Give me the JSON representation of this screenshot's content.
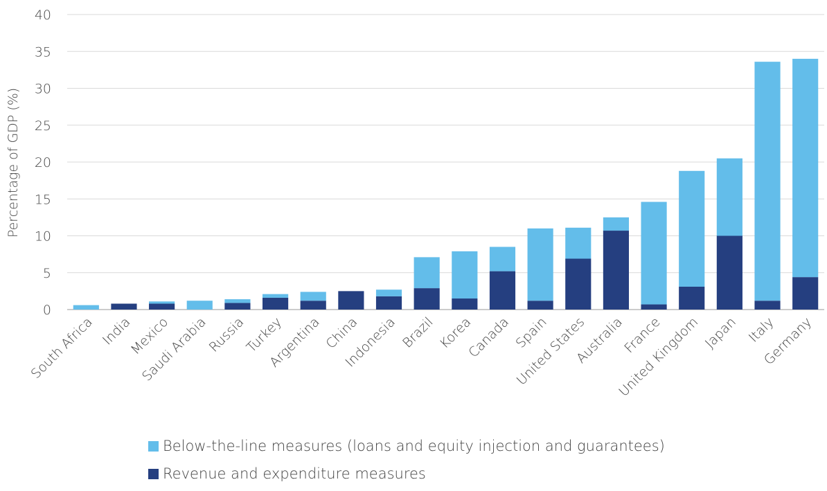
{
  "chart_data": {
    "type": "bar",
    "stacked": true,
    "title": "",
    "xlabel": "",
    "ylabel": "Percentage of GDP (%)",
    "ylim": [
      0,
      40
    ],
    "yticks": [
      0,
      5,
      10,
      15,
      20,
      25,
      30,
      35,
      40
    ],
    "grid": true,
    "legend_position": "bottom",
    "categories": [
      "South Africa",
      "India",
      "Mexico",
      "Saudi Arabia",
      "Russia",
      "Turkey",
      "Argentina",
      "China",
      "Indonesia",
      "Brazil",
      "Korea",
      "Canada",
      "Spain",
      "United States",
      "Australia",
      "France",
      "United Kingdom",
      "Japan",
      "Italy",
      "Germany"
    ],
    "series": [
      {
        "name": "Revenue and expenditure measures",
        "color": "#253f80",
        "values": [
          0,
          0.8,
          0.8,
          0,
          0.9,
          1.6,
          1.2,
          2.5,
          1.8,
          2.9,
          1.5,
          5.2,
          1.2,
          6.9,
          10.7,
          0.7,
          3.1,
          10.0,
          1.2,
          4.4
        ]
      },
      {
        "name": "Below-the-line measures (loans and equity injection and guarantees)",
        "color": "#63bdea",
        "values": [
          0.6,
          0,
          0.3,
          1.2,
          0.5,
          0.5,
          1.2,
          0,
          0.9,
          4.2,
          6.4,
          3.3,
          9.8,
          4.2,
          1.8,
          13.9,
          15.7,
          10.5,
          32.4,
          29.6
        ]
      }
    ]
  },
  "legend": {
    "items": [
      {
        "label": "Below-the-line measures (loans and equity injection and guarantees)",
        "color": "#63bdea"
      },
      {
        "label": "Revenue and expenditure measures",
        "color": "#253f80"
      }
    ]
  }
}
